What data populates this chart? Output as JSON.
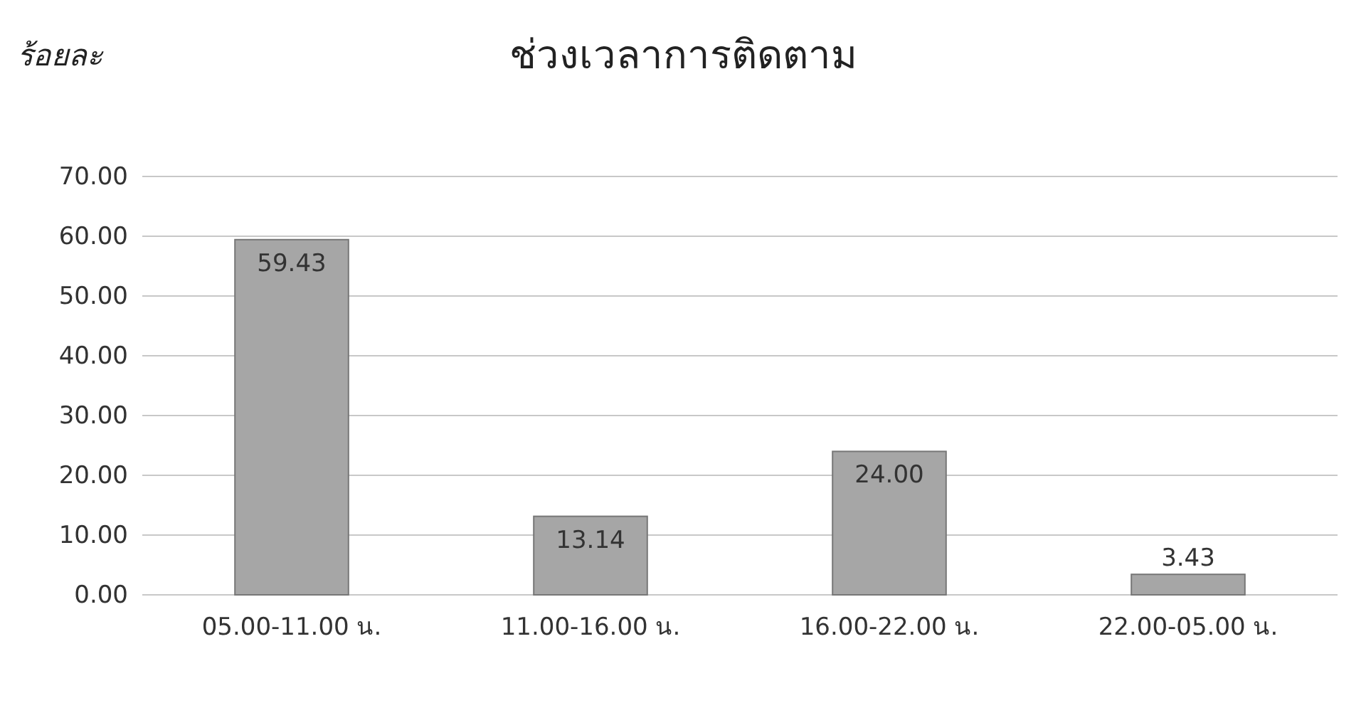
{
  "chart_data": {
    "type": "bar",
    "title": "ช่วงเวลาการติดตาม",
    "ylabel": "ร้อยละ",
    "categories": [
      "05.00-11.00 น.",
      "11.00-16.00 น.",
      "16.00-22.00 น.",
      "22.00-05.00 น."
    ],
    "values": [
      59.43,
      13.14,
      24.0,
      3.43
    ],
    "color": "#a6a6a6",
    "value_labels": [
      "59.43",
      "13.14",
      "24.00",
      "3.43"
    ],
    "ylim": [
      0,
      70
    ],
    "yticks": [
      {
        "value": 0,
        "label": "0.00"
      },
      {
        "value": 10,
        "label": "10.00"
      },
      {
        "value": 20,
        "label": "20.00"
      },
      {
        "value": 30,
        "label": "30.00"
      },
      {
        "value": 40,
        "label": "40.00"
      },
      {
        "value": 50,
        "label": "50.00"
      },
      {
        "value": 60,
        "label": "60.00"
      },
      {
        "value": 70,
        "label": "70.00"
      }
    ],
    "grid": "y"
  }
}
